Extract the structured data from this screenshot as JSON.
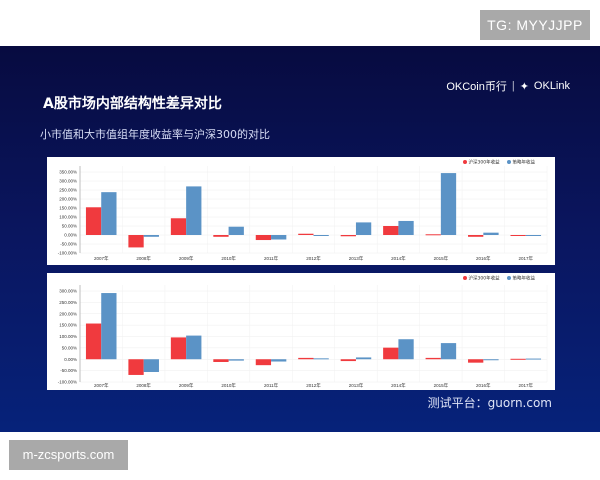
{
  "watermark_top": "TG: MYYJJPP",
  "watermark_bottom": "m-zcsports.com",
  "slide": {
    "title": "A股市场内部结构性差异对比",
    "subtitle": "小市值和大市值组年度收益率与沪深300的对比",
    "logo_left": "OKCoin币行",
    "logo_right": "OKLink",
    "footer": "测试平台：guorn.com"
  },
  "colors": {
    "series_red": "#f03a3e",
    "series_blue": "#5b93c6",
    "slide_bg": "#0a1660"
  },
  "chart_data": [
    {
      "type": "bar",
      "categories": [
        "2007年",
        "2008年",
        "2009年",
        "2010年",
        "2011年",
        "2012年",
        "2013年",
        "2014年",
        "2015年",
        "2016年",
        "2017年"
      ],
      "series": [
        {
          "name": "沪深300年收益",
          "values": [
            154,
            -69,
            93,
            -10,
            -28,
            7,
            -7,
            50,
            4,
            -10,
            -1
          ]
        },
        {
          "name": "策略年收益",
          "values": [
            238,
            -10,
            270,
            46,
            -25,
            -3,
            70,
            78,
            344,
            13,
            -3
          ]
        }
      ],
      "yticks": [
        "350.00%",
        "300.00%",
        "250.00%",
        "200.00%",
        "150.00%",
        "100.00%",
        "50.00%",
        "0.00%",
        "-50.00%",
        "-100.00%"
      ],
      "ylim": [
        -100,
        350
      ],
      "grid": true,
      "legend": "top-right"
    },
    {
      "type": "bar",
      "categories": [
        "2007年",
        "2008年",
        "2009年",
        "2010年",
        "2011年",
        "2012年",
        "2013年",
        "2014年",
        "2015年",
        "2016年",
        "2017年"
      ],
      "series": [
        {
          "name": "沪深300年收益",
          "values": [
            157,
            -69,
            96,
            -12,
            -26,
            6,
            -8,
            51,
            6,
            -15,
            2
          ]
        },
        {
          "name": "策略年收益",
          "values": [
            291,
            -56,
            104,
            -6,
            -10,
            4,
            8,
            88,
            71,
            -3,
            3
          ]
        }
      ],
      "yticks": [
        "300.00%",
        "250.00%",
        "200.00%",
        "150.00%",
        "100.00%",
        "50.00%",
        "0.00%",
        "-50.00%",
        "-100.00%"
      ],
      "ylim": [
        -100,
        300
      ],
      "grid": true,
      "legend": "top-right"
    }
  ]
}
